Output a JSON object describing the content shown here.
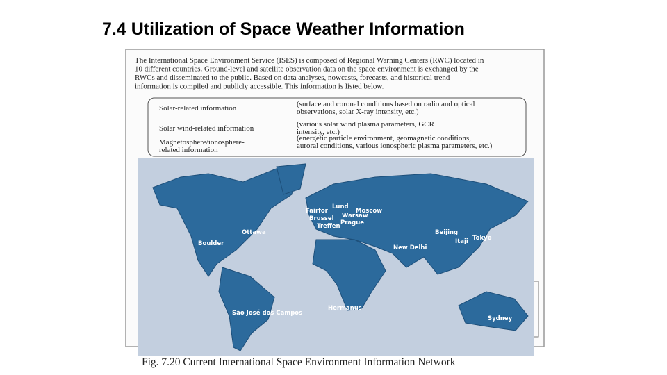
{
  "title": "7.4 Utilization of Space Weather Information",
  "document": {
    "paragraph": [
      "The International Space Environment Service (ISES) is composed of Regional Warning Centers (RWC) located in",
      "10 different countries. Ground-level and satellite observation data on the space environment is exchanged by the",
      "RWCs and disseminated to the public. Based on data analyses, nowcasts, forecasts, and historical trend",
      "information is compiled and publicly accessible. This information is listed below."
    ],
    "table": [
      {
        "label": [
          "Solar-related information"
        ],
        "description": [
          "(surface and coronal conditions based on radio and optical",
          "observations, solar X-ray intensity, etc.)"
        ]
      },
      {
        "label": [
          "Solar wind-related information"
        ],
        "description": [
          "(various solar wind plasma parameters, GCR",
          "intensity, etc.)"
        ]
      },
      {
        "label": [
          "Magnetosphere/ionosphere-",
          "related information"
        ],
        "description": [
          "(energetic particle environment, geomagnetic conditions,",
          "auroral conditions, various ionospheric plasma parameters, etc.)"
        ]
      }
    ],
    "map_labels": [
      "Fairfor",
      "Lund",
      "Moscow",
      "Brussel",
      "Warsaw",
      "Prague",
      "Treffen",
      "Ottawa",
      "Boulder",
      "Beijing",
      "Itaji",
      "Tokyo",
      "New Delhi",
      "Hermanus",
      "São José dos Campos",
      "Sydney"
    ],
    "caption": "Fig. 7.20  Current International Space Environment Information Network"
  }
}
